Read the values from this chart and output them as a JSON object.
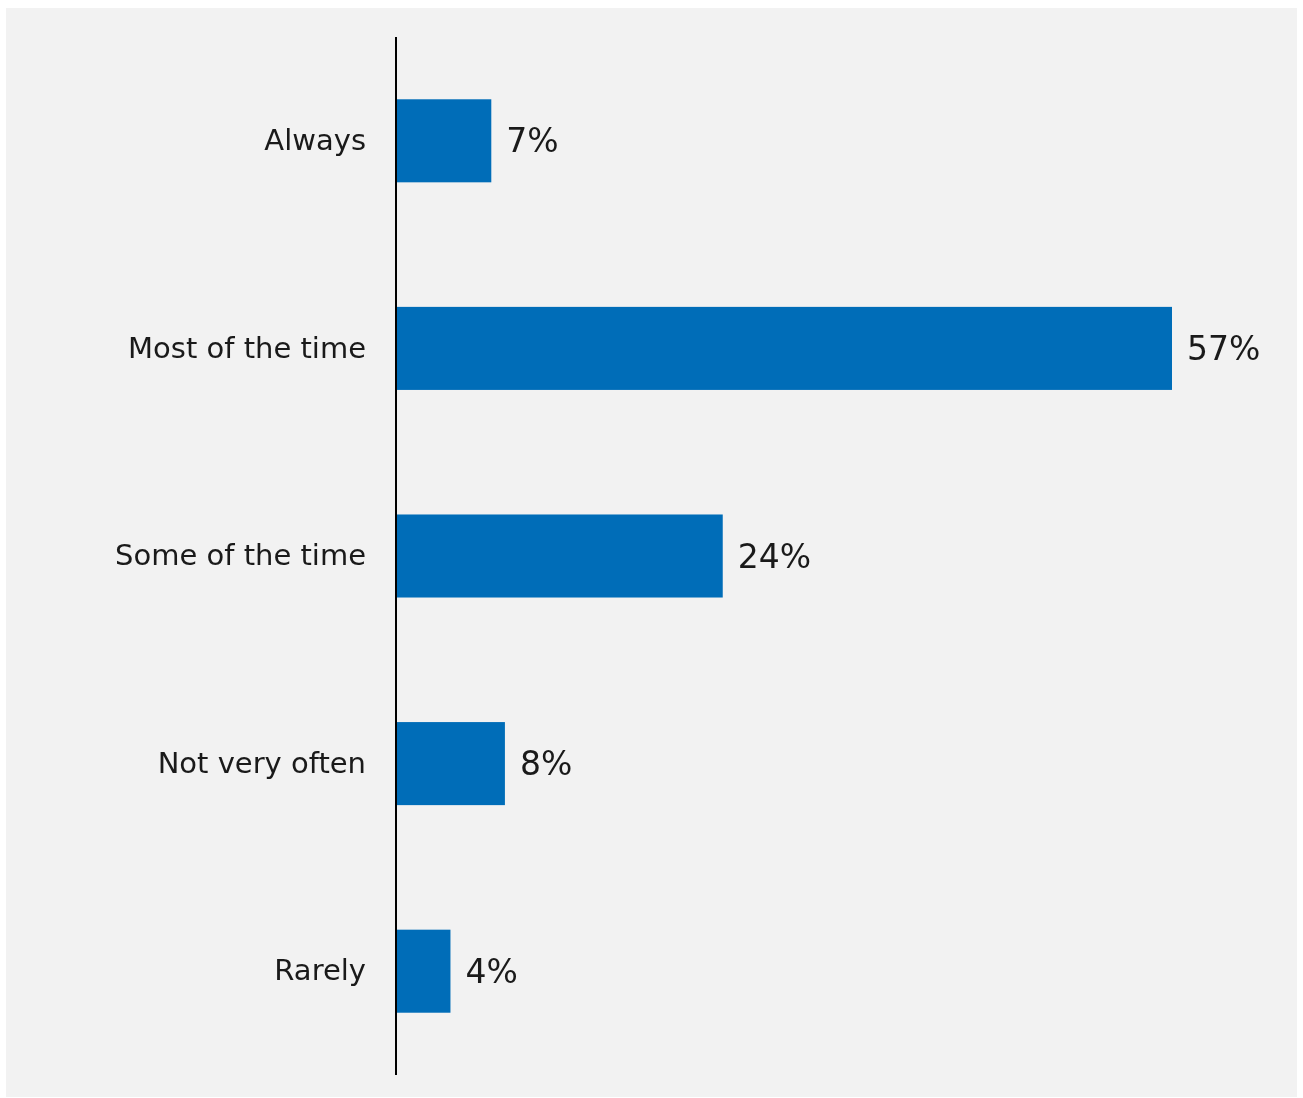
{
  "chart_data": {
    "type": "bar",
    "orientation": "horizontal",
    "categories": [
      "Always",
      "Most of the time",
      "Some of the time",
      "Not very often",
      "Rarely"
    ],
    "values": [
      7,
      57,
      24,
      8,
      4
    ],
    "value_labels": [
      "7%",
      "57%",
      "24%",
      "8%",
      "4%"
    ],
    "color": "#006db8"
  }
}
